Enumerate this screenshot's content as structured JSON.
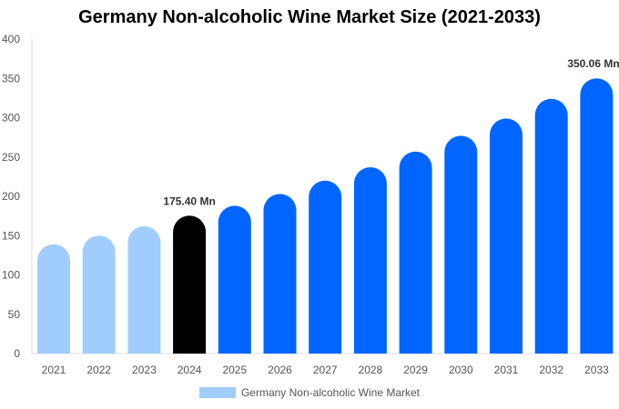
{
  "chart_data": {
    "type": "bar",
    "title": "Germany Non-alcoholic Wine Market Size (2021-2033)",
    "categories": [
      "2021",
      "2022",
      "2023",
      "2024",
      "2025",
      "2026",
      "2027",
      "2028",
      "2029",
      "2030",
      "2031",
      "2032",
      "2033"
    ],
    "series": [
      {
        "name": "Germany Non-alcoholic Wine Market",
        "values": [
          139,
          150,
          162,
          175.4,
          188,
          203,
          220,
          237,
          257,
          277,
          299,
          324,
          350.06
        ]
      }
    ],
    "data_labels": {
      "3": "175.40 Mn",
      "12": "350.06 Mn"
    },
    "ylim": [
      0,
      400
    ],
    "yticks": [
      0,
      50,
      100,
      150,
      200,
      250,
      300,
      350,
      400
    ],
    "grid": false,
    "legend": "bottom",
    "colors": {
      "historical": "#a0cdfd",
      "current": "#000000",
      "forecast": "#0066ff"
    }
  }
}
